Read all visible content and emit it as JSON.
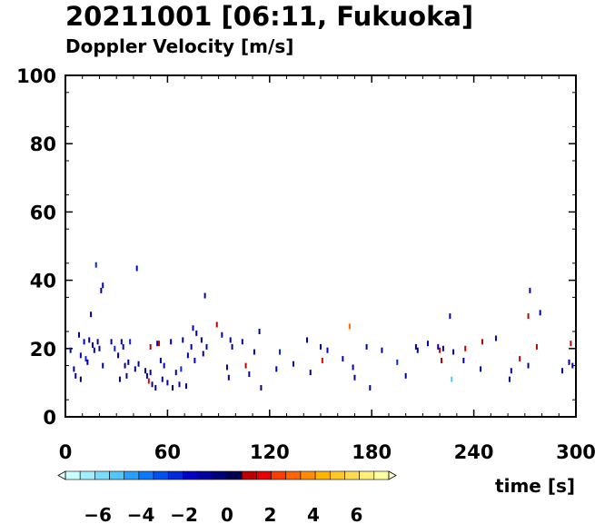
{
  "chart_data": {
    "type": "scatter",
    "title": "20211001 [06:11, Fukuoka]",
    "subtitle": "Doppler Velocity [m/s]",
    "xlabel": "time [s]",
    "ylabel": "",
    "xlim": [
      0,
      300
    ],
    "ylim": [
      0,
      100
    ],
    "xticks": [
      0,
      60,
      120,
      180,
      240,
      300
    ],
    "yticks": [
      0,
      20,
      40,
      60,
      80,
      100
    ],
    "grid": false,
    "colorbar": {
      "range": [
        -7.5,
        7.5
      ],
      "ticks": [
        -6,
        -4,
        -2,
        0,
        2,
        4,
        6
      ],
      "colors": [
        "#c8ffff",
        "#a0f0ff",
        "#78dcff",
        "#50c8ff",
        "#28a0ff",
        "#0a78ff",
        "#0050f0",
        "#0028dc",
        "#0000c8",
        "#0000a0",
        "#000078",
        "#000050",
        "#be0000",
        "#e60000",
        "#ff3c00",
        "#ff6400",
        "#ff8c00",
        "#ffb400",
        "#ffc828",
        "#ffdc50",
        "#fff078",
        "#ffffa0"
      ]
    },
    "points": [
      {
        "t": 3,
        "h": 19.5,
        "v": -1.5
      },
      {
        "t": 5,
        "h": 14,
        "v": -0.8
      },
      {
        "t": 6,
        "h": 12,
        "v": -1.2
      },
      {
        "t": 8,
        "h": 24,
        "v": -1.0
      },
      {
        "t": 9,
        "h": 18,
        "v": -2.0
      },
      {
        "t": 9,
        "h": 11,
        "v": -0.6
      },
      {
        "t": 11,
        "h": 22,
        "v": -1.8
      },
      {
        "t": 12,
        "h": 17,
        "v": -2.2
      },
      {
        "t": 13,
        "h": 16,
        "v": -1.0
      },
      {
        "t": 14,
        "h": 22.5,
        "v": -0.9
      },
      {
        "t": 15,
        "h": 30,
        "v": -1.3
      },
      {
        "t": 16,
        "h": 21,
        "v": -1.6
      },
      {
        "t": 17,
        "h": 19.5,
        "v": -2.0
      },
      {
        "t": 18,
        "h": 44.5,
        "v": -2.5
      },
      {
        "t": 19,
        "h": 22,
        "v": -1.1
      },
      {
        "t": 20,
        "h": 20,
        "v": -0.7
      },
      {
        "t": 21,
        "h": 37,
        "v": -0.8
      },
      {
        "t": 22,
        "h": 38.5,
        "v": -1.5
      },
      {
        "t": 22,
        "h": 15,
        "v": -1.2
      },
      {
        "t": 27,
        "h": 22,
        "v": -0.9
      },
      {
        "t": 29,
        "h": 20,
        "v": -2.1
      },
      {
        "t": 31,
        "h": 18,
        "v": -0.8
      },
      {
        "t": 32,
        "h": 11,
        "v": -1.0
      },
      {
        "t": 33,
        "h": 22,
        "v": -1.4
      },
      {
        "t": 34,
        "h": 20.5,
        "v": -1.9
      },
      {
        "t": 35,
        "h": 15,
        "v": -1.1
      },
      {
        "t": 36,
        "h": 12,
        "v": -0.7
      },
      {
        "t": 37,
        "h": 16,
        "v": -1.3
      },
      {
        "t": 38,
        "h": 22,
        "v": -2.3
      },
      {
        "t": 41,
        "h": 14,
        "v": -0.9
      },
      {
        "t": 42,
        "h": 43.5,
        "v": -1.6
      },
      {
        "t": 43,
        "h": 15.5,
        "v": -1.2
      },
      {
        "t": 47,
        "h": 13.5,
        "v": -1.0
      },
      {
        "t": 48,
        "h": 12,
        "v": -0.8
      },
      {
        "t": 49,
        "h": 10.5,
        "v": 1.5
      },
      {
        "t": 50,
        "h": 13,
        "v": -1.7
      },
      {
        "t": 50,
        "h": 20.5,
        "v": 1.0
      },
      {
        "t": 51,
        "h": 9.5,
        "v": -1.1
      },
      {
        "t": 53,
        "h": 8.5,
        "v": -0.9
      },
      {
        "t": 54,
        "h": 21.5,
        "v": -2.0
      },
      {
        "t": 55,
        "h": 21.5,
        "v": 0.9
      },
      {
        "t": 56,
        "h": 16.5,
        "v": -1.3
      },
      {
        "t": 57,
        "h": 11,
        "v": -0.7
      },
      {
        "t": 58,
        "h": 15,
        "v": -1.5
      },
      {
        "t": 60,
        "h": 10,
        "v": -1.0
      },
      {
        "t": 62,
        "h": 22,
        "v": -1.8
      },
      {
        "t": 63,
        "h": 8.5,
        "v": -0.9
      },
      {
        "t": 65,
        "h": 13,
        "v": -1.1
      },
      {
        "t": 67,
        "h": 9.5,
        "v": -1.6
      },
      {
        "t": 68,
        "h": 14,
        "v": -2.2
      },
      {
        "t": 69,
        "h": 22.5,
        "v": -0.8
      },
      {
        "t": 71,
        "h": 9,
        "v": -1.0
      },
      {
        "t": 72,
        "h": 18,
        "v": -1.2
      },
      {
        "t": 74,
        "h": 20.5,
        "v": -0.7
      },
      {
        "t": 75,
        "h": 26,
        "v": -1.4
      },
      {
        "t": 76,
        "h": 16.5,
        "v": -1.9
      },
      {
        "t": 77,
        "h": 24.5,
        "v": -1.1
      },
      {
        "t": 80,
        "h": 22.5,
        "v": -0.9
      },
      {
        "t": 81,
        "h": 18.5,
        "v": -1.3
      },
      {
        "t": 82,
        "h": 35.5,
        "v": -1.7
      },
      {
        "t": 83,
        "h": 20.5,
        "v": -2.0
      },
      {
        "t": 89,
        "h": 27,
        "v": 1.2
      },
      {
        "t": 92,
        "h": 24,
        "v": -1.5
      },
      {
        "t": 95,
        "h": 14.5,
        "v": -1.0
      },
      {
        "t": 96,
        "h": 11.5,
        "v": -0.8
      },
      {
        "t": 97,
        "h": 22.5,
        "v": -1.6
      },
      {
        "t": 98,
        "h": 20.5,
        "v": -1.1
      },
      {
        "t": 104,
        "h": 22,
        "v": -0.9
      },
      {
        "t": 106,
        "h": 15,
        "v": 1.0
      },
      {
        "t": 108,
        "h": 12.5,
        "v": -1.4
      },
      {
        "t": 111,
        "h": 19,
        "v": -1.8
      },
      {
        "t": 114,
        "h": 25,
        "v": -1.2
      },
      {
        "t": 115,
        "h": 8.5,
        "v": -1.0
      },
      {
        "t": 124,
        "h": 14,
        "v": -0.8
      },
      {
        "t": 126,
        "h": 19,
        "v": -2.1
      },
      {
        "t": 134,
        "h": 15.5,
        "v": -1.3
      },
      {
        "t": 142,
        "h": 22.5,
        "v": -1.5
      },
      {
        "t": 144,
        "h": 13,
        "v": -0.9
      },
      {
        "t": 150,
        "h": 20.5,
        "v": -1.1
      },
      {
        "t": 151,
        "h": 16.5,
        "v": 1.4
      },
      {
        "t": 154,
        "h": 19.5,
        "v": -0.8
      },
      {
        "t": 163,
        "h": 17,
        "v": -1.6
      },
      {
        "t": 167,
        "h": 26.5,
        "v": 2.8
      },
      {
        "t": 169,
        "h": 14.5,
        "v": -1.0
      },
      {
        "t": 170,
        "h": 11.5,
        "v": -1.3
      },
      {
        "t": 177,
        "h": 20.5,
        "v": -1.8
      },
      {
        "t": 179,
        "h": 8.5,
        "v": -0.9
      },
      {
        "t": 186,
        "h": 19.5,
        "v": -1.2
      },
      {
        "t": 195,
        "h": 16,
        "v": -2.2
      },
      {
        "t": 200,
        "h": 12,
        "v": -0.7
      },
      {
        "t": 206,
        "h": 20.5,
        "v": -1.1
      },
      {
        "t": 207,
        "h": 19.5,
        "v": -0.9
      },
      {
        "t": 213,
        "h": 21.5,
        "v": -1.5
      },
      {
        "t": 219,
        "h": 20.5,
        "v": -2.0
      },
      {
        "t": 220,
        "h": 19.5,
        "v": 1.0
      },
      {
        "t": 221,
        "h": 16.5,
        "v": 1.3
      },
      {
        "t": 222,
        "h": 20,
        "v": -1.2
      },
      {
        "t": 226,
        "h": 29.5,
        "v": -1.4
      },
      {
        "t": 227,
        "h": 11,
        "v": -5.0
      },
      {
        "t": 228,
        "h": 19,
        "v": -0.8
      },
      {
        "t": 234,
        "h": 16.5,
        "v": -1.1
      },
      {
        "t": 235,
        "h": 20,
        "v": 1.2
      },
      {
        "t": 244,
        "h": 14,
        "v": -0.9
      },
      {
        "t": 245,
        "h": 22,
        "v": 1.0
      },
      {
        "t": 253,
        "h": 23,
        "v": -1.7
      },
      {
        "t": 261,
        "h": 11,
        "v": -1.2
      },
      {
        "t": 262,
        "h": 13.5,
        "v": -0.8
      },
      {
        "t": 267,
        "h": 17,
        "v": 1.3
      },
      {
        "t": 272,
        "h": 29.5,
        "v": 1.0
      },
      {
        "t": 272,
        "h": 15,
        "v": -1.1
      },
      {
        "t": 273,
        "h": 37,
        "v": -1.5
      },
      {
        "t": 277,
        "h": 20.5,
        "v": 1.2
      },
      {
        "t": 279,
        "h": 30.5,
        "v": -1.3
      },
      {
        "t": 292,
        "h": 13.5,
        "v": -1.1
      },
      {
        "t": 296,
        "h": 16,
        "v": -0.8
      },
      {
        "t": 297,
        "h": 21.5,
        "v": 1.0
      },
      {
        "t": 298,
        "h": 15,
        "v": -1.6
      }
    ]
  }
}
